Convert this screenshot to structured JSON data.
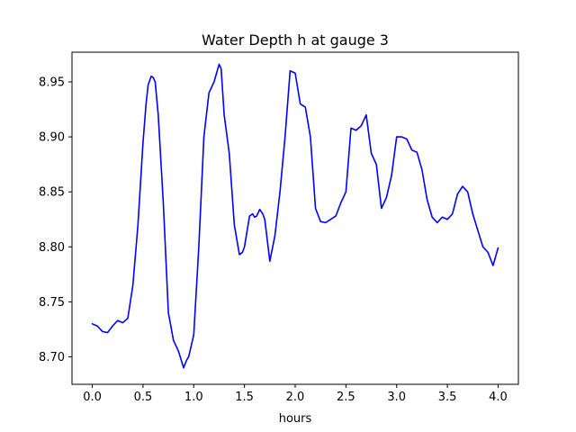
{
  "chart_data": {
    "type": "line",
    "title": "Water Depth h at gauge 3",
    "xlabel": "hours",
    "ylabel": "",
    "xlim": [
      -0.2,
      4.2
    ],
    "ylim": [
      8.675,
      8.977
    ],
    "xticks": [
      0.0,
      0.5,
      1.0,
      1.5,
      2.0,
      2.5,
      3.0,
      3.5,
      4.0
    ],
    "xtick_labels": [
      "0.0",
      "0.5",
      "1.0",
      "1.5",
      "2.0",
      "2.5",
      "3.0",
      "3.5",
      "4.0"
    ],
    "yticks": [
      8.7,
      8.75,
      8.8,
      8.85,
      8.9,
      8.95
    ],
    "ytick_labels": [
      "8.70",
      "8.75",
      "8.80",
      "8.85",
      "8.90",
      "8.95"
    ],
    "grid": false,
    "color": "#0000ff",
    "series": [
      {
        "x": [
          0.0,
          0.05,
          0.1,
          0.15,
          0.2,
          0.25,
          0.3,
          0.35,
          0.4,
          0.45,
          0.5,
          0.53,
          0.55,
          0.58,
          0.6,
          0.62,
          0.65,
          0.7,
          0.75,
          0.8,
          0.85,
          0.9,
          0.93,
          0.95,
          1.0,
          1.05,
          1.1,
          1.15,
          1.2,
          1.25,
          1.27,
          1.3,
          1.35,
          1.4,
          1.45,
          1.48,
          1.5,
          1.55,
          1.58,
          1.6,
          1.62,
          1.65,
          1.68,
          1.7,
          1.75,
          1.8,
          1.85,
          1.9,
          1.95,
          2.0,
          2.05,
          2.1,
          2.15,
          2.2,
          2.25,
          2.3,
          2.35,
          2.4,
          2.45,
          2.5,
          2.55,
          2.6,
          2.65,
          2.7,
          2.75,
          2.8,
          2.85,
          2.9,
          2.95,
          3.0,
          3.05,
          3.1,
          3.15,
          3.2,
          3.25,
          3.3,
          3.35,
          3.4,
          3.45,
          3.5,
          3.55,
          3.6,
          3.65,
          3.7,
          3.75,
          3.8,
          3.85,
          3.9,
          3.95,
          4.0
        ],
        "y": [
          8.73,
          8.728,
          8.723,
          8.722,
          8.728,
          8.733,
          8.731,
          8.735,
          8.765,
          8.82,
          8.895,
          8.93,
          8.947,
          8.955,
          8.954,
          8.95,
          8.92,
          8.84,
          8.74,
          8.715,
          8.705,
          8.69,
          8.697,
          8.7,
          8.72,
          8.8,
          8.9,
          8.94,
          8.95,
          8.966,
          8.962,
          8.92,
          8.885,
          8.82,
          8.793,
          8.795,
          8.8,
          8.828,
          8.83,
          8.827,
          8.828,
          8.834,
          8.83,
          8.825,
          8.787,
          8.81,
          8.85,
          8.9,
          8.96,
          8.958,
          8.93,
          8.927,
          8.9,
          8.835,
          8.823,
          8.822,
          8.825,
          8.828,
          8.84,
          8.85,
          8.908,
          8.906,
          8.91,
          8.92,
          8.885,
          8.875,
          8.835,
          8.845,
          8.865,
          8.9,
          8.9,
          8.898,
          8.888,
          8.886,
          8.87,
          8.843,
          8.827,
          8.822,
          8.827,
          8.825,
          8.83,
          8.848,
          8.855,
          8.85,
          8.83,
          8.815,
          8.8,
          8.795,
          8.783,
          8.799
        ]
      }
    ]
  }
}
